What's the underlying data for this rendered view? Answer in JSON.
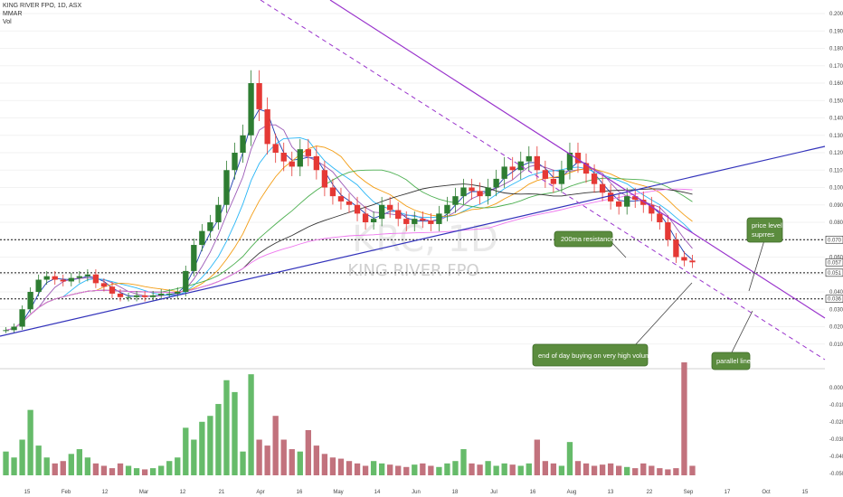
{
  "header": {
    "symbol_line": "KING RIVER FPO, 1D, ASX",
    "indicator_1": "MMAR",
    "indicator_2": "Vol"
  },
  "watermark": {
    "ticker": "KRC, 1D",
    "name": "KING RIVER FPO"
  },
  "colors": {
    "up": "#2e7d32",
    "down": "#e53935",
    "vol_up": "#66bb6a",
    "vol_down": "#c2727d",
    "trendline": "#3333bb",
    "resistance": "#9933cc",
    "ma200": "#ee77ee",
    "callout_bg": "#5b8c3e"
  },
  "chart_data": {
    "type": "candlestick",
    "x_tick_labels": [
      "15",
      "Feb",
      "12",
      "Mar",
      "12",
      "21",
      "Apr",
      "16",
      "May",
      "14",
      "Jun",
      "18",
      "Jul",
      "16",
      "Aug",
      "13",
      "22",
      "Sep",
      "17",
      "Oct",
      "15"
    ],
    "price_axis": {
      "ylim": [
        0.0,
        0.2
      ],
      "ticks": [
        "0.200",
        "0.190",
        "0.180",
        "0.170",
        "0.160",
        "0.150",
        "0.140",
        "0.130",
        "0.120",
        "0.110",
        "0.100",
        "0.090",
        "0.080",
        "0.070",
        "0.060",
        "0.050",
        "0.040",
        "0.030",
        "0.020",
        "0.010"
      ],
      "highlighted_levels": [
        "0.070",
        "0.057",
        "0.051",
        "0.036"
      ]
    },
    "volume_axis": {
      "ticks": [
        "0.000",
        "-0.010",
        "-0.020",
        "-0.030",
        "-0.040",
        "-0.050"
      ]
    },
    "price_series": [
      0.018,
      0.02,
      0.03,
      0.04,
      0.047,
      0.049,
      0.047,
      0.046,
      0.048,
      0.049,
      0.05,
      0.045,
      0.043,
      0.039,
      0.037,
      0.037,
      0.038,
      0.037,
      0.038,
      0.039,
      0.039,
      0.04,
      0.052,
      0.067,
      0.075,
      0.08,
      0.09,
      0.11,
      0.12,
      0.13,
      0.16,
      0.145,
      0.125,
      0.12,
      0.115,
      0.112,
      0.122,
      0.118,
      0.11,
      0.1,
      0.095,
      0.092,
      0.09,
      0.085,
      0.08,
      0.082,
      0.09,
      0.087,
      0.082,
      0.079,
      0.082,
      0.081,
      0.079,
      0.085,
      0.09,
      0.095,
      0.1,
      0.098,
      0.095,
      0.1,
      0.105,
      0.112,
      0.11,
      0.115,
      0.118,
      0.11,
      0.105,
      0.102,
      0.11,
      0.12,
      0.114,
      0.108,
      0.102,
      0.097,
      0.092,
      0.089,
      0.095,
      0.093,
      0.09,
      0.085,
      0.08,
      0.07,
      0.06,
      0.058,
      0.057
    ],
    "volume_series": [
      20,
      15,
      30,
      55,
      25,
      15,
      10,
      12,
      18,
      22,
      15,
      10,
      8,
      6,
      10,
      8,
      6,
      5,
      6,
      8,
      12,
      15,
      40,
      30,
      45,
      50,
      60,
      80,
      70,
      20,
      85,
      30,
      25,
      50,
      30,
      22,
      20,
      38,
      25,
      18,
      15,
      14,
      12,
      10,
      8,
      12,
      10,
      9,
      8,
      7,
      9,
      10,
      8,
      7,
      10,
      12,
      22,
      10,
      9,
      12,
      8,
      10,
      9,
      8,
      10,
      30,
      12,
      10,
      8,
      28,
      12,
      10,
      8,
      9,
      10,
      8,
      7,
      6,
      10,
      8,
      6,
      5,
      6,
      95,
      8
    ],
    "annotations": [
      "200ma resistance",
      "end of day buying on very high volume",
      "price level suprres",
      "parallel line"
    ]
  },
  "annotations": {
    "ma200": "200ma resistance",
    "volume": "end of day buying on very high volume",
    "price_level": "price level suprres",
    "parallel": "parallel line"
  }
}
